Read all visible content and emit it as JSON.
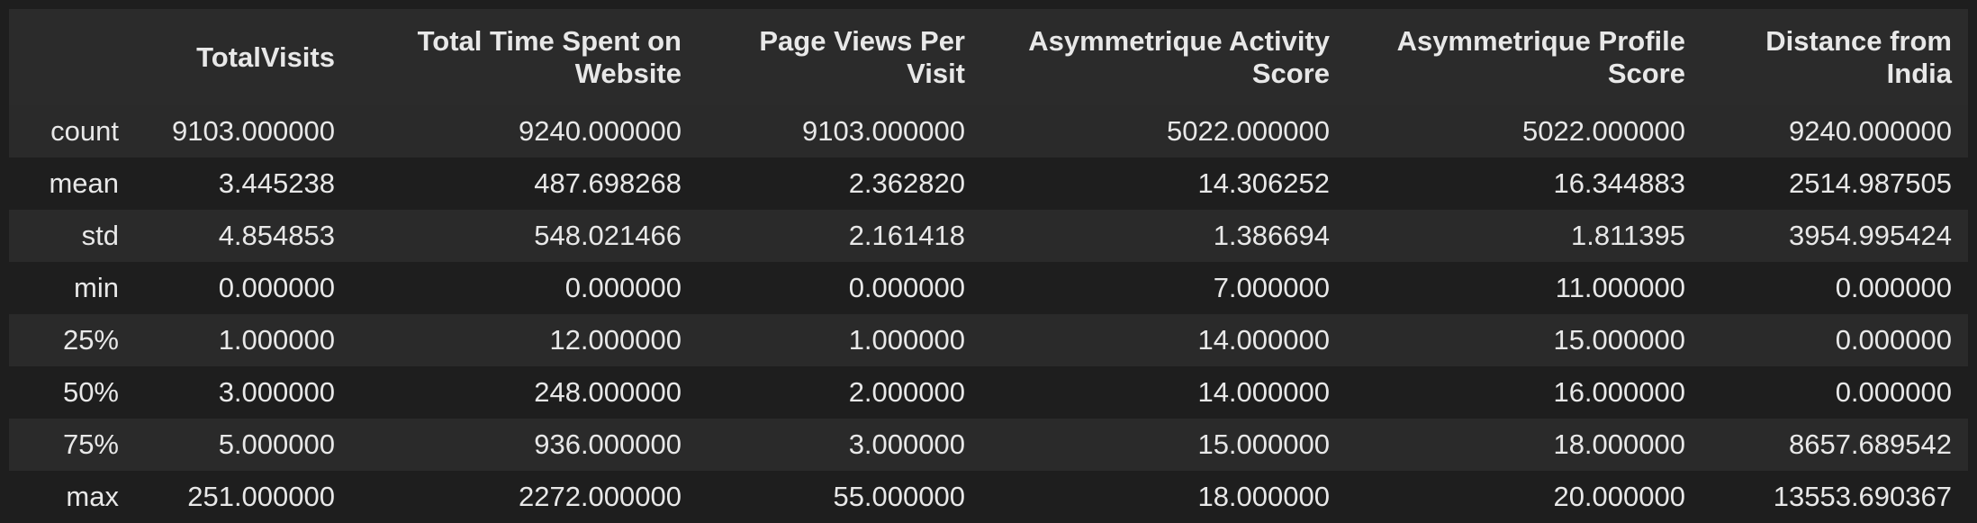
{
  "table": {
    "index_header": "",
    "columns": [
      "TotalVisits",
      "Total Time Spent on Website",
      "Page Views Per Visit",
      "Asymmetrique Activity Score",
      "Asymmetrique Profile Score",
      "Distance from India"
    ],
    "rows": [
      {
        "label": "count",
        "values": [
          "9103.000000",
          "9240.000000",
          "9103.000000",
          "5022.000000",
          "5022.000000",
          "9240.000000"
        ]
      },
      {
        "label": "mean",
        "values": [
          "3.445238",
          "487.698268",
          "2.362820",
          "14.306252",
          "16.344883",
          "2514.987505"
        ]
      },
      {
        "label": "std",
        "values": [
          "4.854853",
          "548.021466",
          "2.161418",
          "1.386694",
          "1.811395",
          "3954.995424"
        ]
      },
      {
        "label": "min",
        "values": [
          "0.000000",
          "0.000000",
          "0.000000",
          "7.000000",
          "11.000000",
          "0.000000"
        ]
      },
      {
        "label": "25%",
        "values": [
          "1.000000",
          "12.000000",
          "1.000000",
          "14.000000",
          "15.000000",
          "0.000000"
        ]
      },
      {
        "label": "50%",
        "values": [
          "3.000000",
          "248.000000",
          "2.000000",
          "14.000000",
          "16.000000",
          "0.000000"
        ]
      },
      {
        "label": "75%",
        "values": [
          "5.000000",
          "936.000000",
          "3.000000",
          "15.000000",
          "18.000000",
          "8657.689542"
        ]
      },
      {
        "label": "max",
        "values": [
          "251.000000",
          "2272.000000",
          "55.000000",
          "18.000000",
          "20.000000",
          "13553.690367"
        ]
      }
    ]
  },
  "colors": {
    "background": "#1e1e1e",
    "header_background": "#2b2b2b",
    "row_odd": "#2a2a2a",
    "row_even": "#1e1e1e",
    "text": "#e8e8e8"
  }
}
